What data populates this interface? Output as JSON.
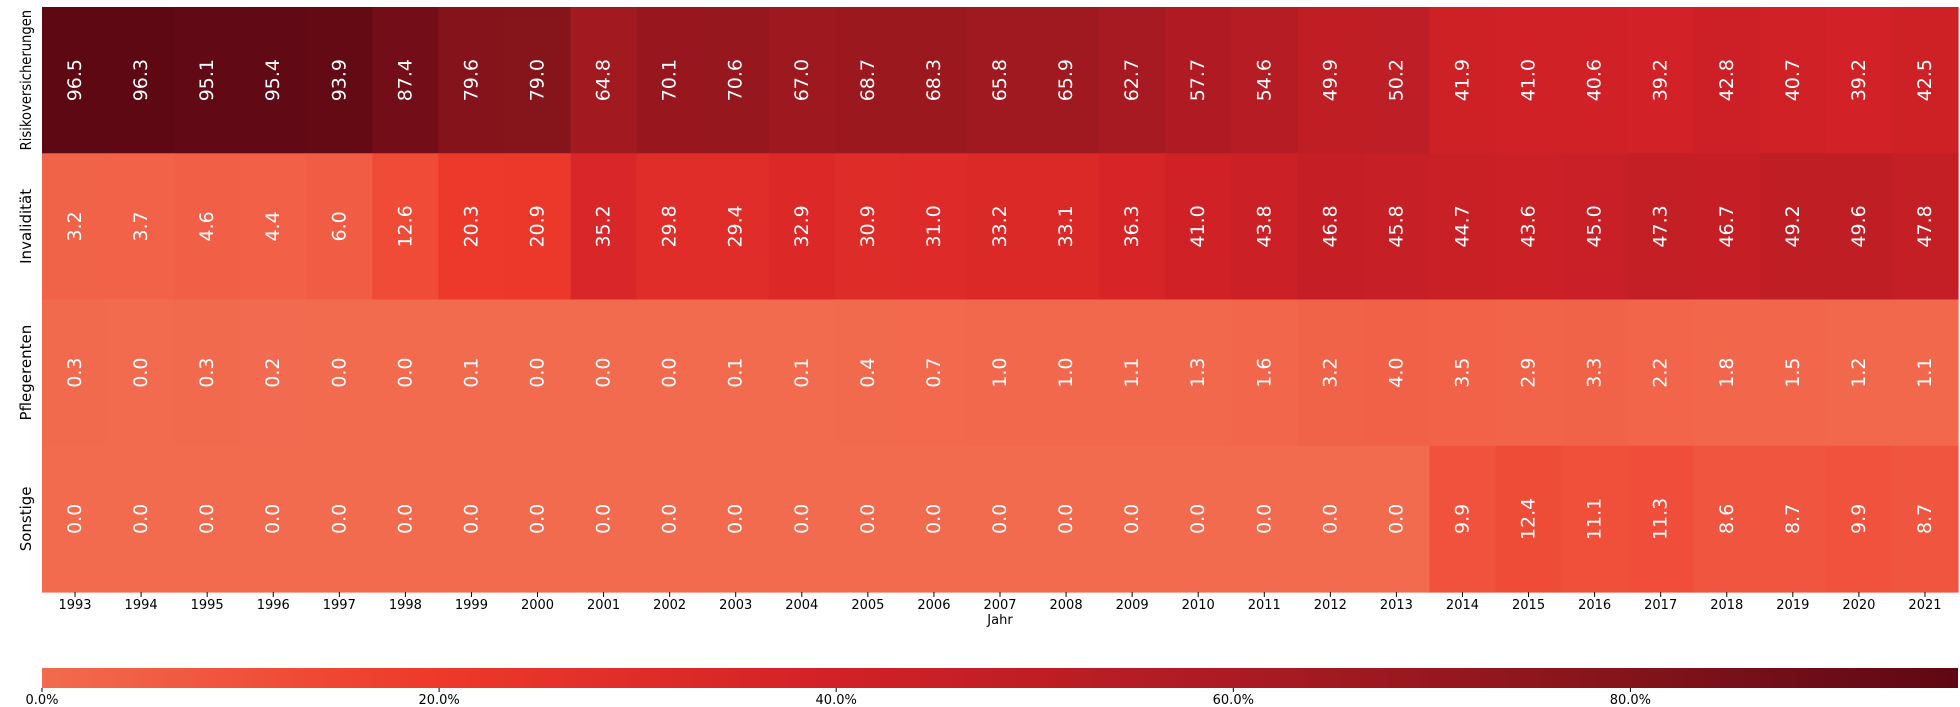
{
  "chart_data": {
    "type": "heatmap",
    "title": "",
    "xlabel": "Jahr",
    "ylabel": "",
    "x": [
      "1993",
      "1994",
      "1995",
      "1996",
      "1997",
      "1998",
      "1999",
      "2000",
      "2001",
      "2002",
      "2003",
      "2004",
      "2005",
      "2006",
      "2007",
      "2008",
      "2009",
      "2010",
      "2011",
      "2012",
      "2013",
      "2014",
      "2015",
      "2016",
      "2017",
      "2018",
      "2019",
      "2020",
      "2021"
    ],
    "rows": [
      "Risikoversicherungen",
      "Invalidität",
      "Pflegerenten",
      "Sonstige"
    ],
    "values": [
      [
        96.5,
        96.3,
        95.1,
        95.4,
        93.9,
        87.4,
        79.6,
        79.0,
        64.8,
        70.1,
        70.6,
        67.0,
        68.7,
        68.3,
        65.8,
        65.9,
        62.7,
        57.7,
        54.6,
        49.9,
        50.2,
        41.9,
        41.0,
        40.6,
        39.2,
        42.8,
        40.7,
        39.2,
        42.5
      ],
      [
        3.2,
        3.7,
        4.6,
        4.4,
        6.0,
        12.6,
        20.3,
        20.9,
        35.2,
        29.8,
        29.4,
        32.9,
        30.9,
        31.0,
        33.2,
        33.1,
        36.3,
        41.0,
        43.8,
        46.8,
        45.8,
        44.7,
        43.6,
        45.0,
        47.3,
        46.7,
        49.2,
        49.6,
        47.8
      ],
      [
        0.3,
        0.0,
        0.3,
        0.2,
        0.0,
        0.0,
        0.1,
        0.0,
        0.0,
        0.0,
        0.1,
        0.1,
        0.4,
        0.7,
        1.0,
        1.0,
        1.1,
        1.3,
        1.6,
        3.2,
        4.0,
        3.5,
        2.9,
        3.3,
        2.2,
        1.8,
        1.5,
        1.2,
        1.1
      ],
      [
        0.0,
        0.0,
        0.0,
        0.0,
        0.0,
        0.0,
        0.0,
        0.0,
        0.0,
        0.0,
        0.0,
        0.0,
        0.0,
        0.0,
        0.0,
        0.0,
        0.0,
        0.0,
        0.0,
        0.0,
        0.0,
        9.9,
        12.4,
        11.1,
        11.3,
        8.6,
        8.7,
        9.9,
        8.7
      ]
    ],
    "value_format": "one decimal",
    "colorbar": {
      "orientation": "horizontal",
      "range": [
        0,
        96.5
      ],
      "ticks": [
        "0.0%",
        "20.0%",
        "40.0%",
        "60.0%",
        "80.0%"
      ],
      "tick_values": [
        0,
        20,
        40,
        60,
        80
      ]
    },
    "colormap": [
      "#f26b4f",
      "#ee3a2b",
      "#d42227",
      "#b01b23",
      "#8a151c",
      "#5e0814"
    ],
    "grid": false
  }
}
